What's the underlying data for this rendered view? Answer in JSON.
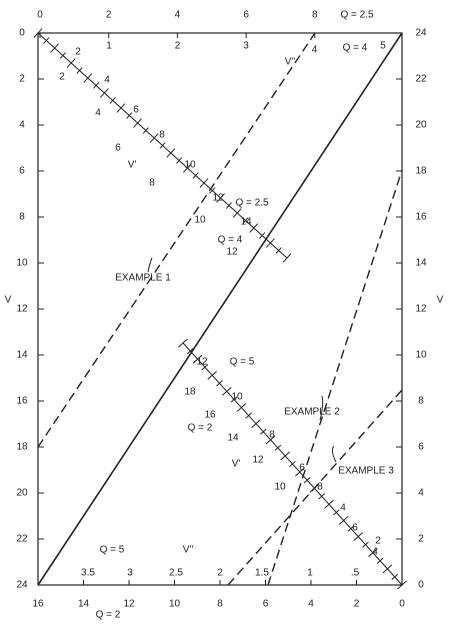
{
  "axes": {
    "top_outer": [
      "0",
      "2",
      "4",
      "6",
      "8"
    ],
    "top_outer_note": "Q = 2.5",
    "top_inner": [
      "1",
      "2",
      "3",
      "4",
      "5"
    ],
    "top_inner_note": "Q = 4",
    "top_inner_name": "V''",
    "left": [
      "0",
      "2",
      "4",
      "6",
      "8",
      "10",
      "12",
      "14",
      "16",
      "18",
      "20",
      "22",
      "24"
    ],
    "left_name": "V",
    "right": [
      "24",
      "22",
      "20",
      "18",
      "16",
      "14",
      "12",
      "10",
      "8",
      "6",
      "4",
      "2",
      "0"
    ],
    "right_name": "V",
    "bottom_outer": [
      "16",
      "14",
      "12",
      "10",
      "8",
      "6",
      "4",
      "2",
      "0"
    ],
    "bottom_outer_note": "Q = 2",
    "bottom_inner": [
      "3.5",
      "3",
      "2.5",
      "2",
      "1.5",
      "1",
      ".5"
    ],
    "bottom_inner_note": "Q = 5",
    "bottom_inner_name": "V''"
  },
  "upper_scale": {
    "labels": [
      "2",
      "2",
      "4",
      "4",
      "6",
      "6",
      "8",
      "8",
      "V'",
      "10",
      "10",
      "12",
      "12",
      "14",
      "Q = 2.5",
      "Q = 4"
    ]
  },
  "lower_scale": {
    "labels": [
      "12",
      "Q = 5",
      "18",
      "10",
      "16",
      "Q = 2",
      "8",
      "14",
      "12",
      "V'",
      "6",
      "10",
      "8",
      "4",
      "6",
      "4",
      "2"
    ]
  },
  "examples": [
    "EXAMPLE 1",
    "EXAMPLE 2",
    "EXAMPLE 3"
  ]
}
